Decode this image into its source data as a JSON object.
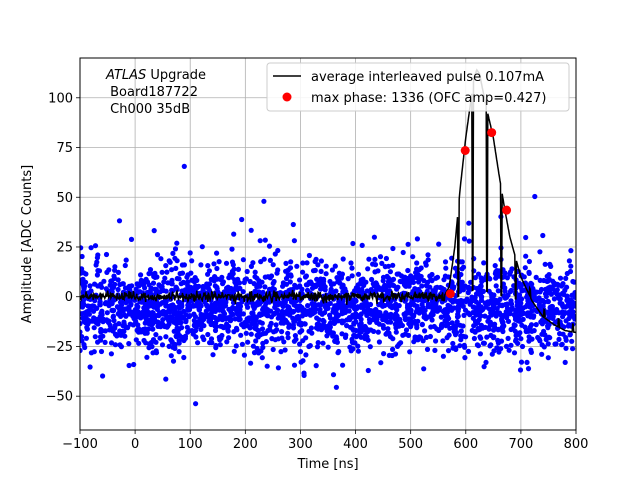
{
  "chart_data": {
    "type": "scatter",
    "xlabel": "Time [ns]",
    "ylabel": "Amplitude [ADC Counts]",
    "xlim": [
      -100,
      800
    ],
    "ylim": [
      -67,
      120
    ],
    "xticks": [
      -100,
      0,
      100,
      200,
      300,
      400,
      500,
      600,
      700,
      800
    ],
    "yticks": [
      -50,
      -25,
      0,
      25,
      50,
      75,
      100
    ],
    "grid": true,
    "legend_position": "top-right",
    "annotation": {
      "line1_italic": "ATLAS",
      "line1_rest": " Upgrade",
      "line2": " Board187722",
      "line3": " Ch000 35dB"
    },
    "series": [
      {
        "name": "average interleaved pulse 0.107mA",
        "kind": "line",
        "color": "#000000",
        "pulse_x": [
          -100,
          560,
          570,
          580,
          590,
          600,
          610,
          615,
          620,
          625,
          630,
          640,
          650,
          660,
          670,
          680,
          690,
          700,
          720,
          740,
          760,
          780,
          800
        ],
        "pulse_y": [
          0,
          0,
          5,
          25,
          55,
          80,
          100,
          110,
          114,
          112,
          105,
          92,
          80,
          62,
          45,
          30,
          20,
          10,
          -2,
          -10,
          -14,
          -17,
          -18
        ],
        "baseline_noise": 2
      },
      {
        "name": "max phase: 1336 (OFC amp=0.427)",
        "kind": "points",
        "color": "#ff0000",
        "x": [
          572,
          599,
          647,
          674
        ],
        "y": [
          1.5,
          73.5,
          82.5,
          43.5
        ]
      },
      {
        "name": "",
        "kind": "noise-scatter",
        "color": "#0000ff",
        "x_range": [
          -100,
          800
        ],
        "y_center": -5,
        "y_sigma": 11
      }
    ]
  }
}
